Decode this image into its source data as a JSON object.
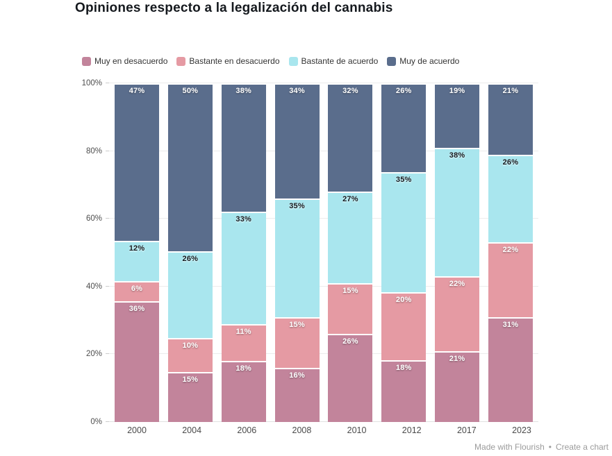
{
  "title": "Opiniones respecto a la legalización del cannabis",
  "footer": {
    "made_with": "Made with Flourish",
    "separator": "•",
    "create": "Create a chart"
  },
  "colors": {
    "background": "#ffffff",
    "title_text": "#15191e",
    "axis_text": "#4d4d4d",
    "gridline": "#ececec",
    "footer_text": "#9b9b9b"
  },
  "chart_data": {
    "type": "bar",
    "stacked": true,
    "title": "Opiniones respecto a la legalización del cannabis",
    "categories": [
      "2000",
      "2004",
      "2006",
      "2008",
      "2010",
      "2012",
      "2017",
      "2023"
    ],
    "series": [
      {
        "name": "Muy en desacuerdo",
        "color": "#c2849b",
        "label_color": "#ffffff",
        "values": [
          36,
          15,
          18,
          16,
          26,
          18,
          21,
          31
        ]
      },
      {
        "name": "Bastante en desacuerdo",
        "color": "#e59aa3",
        "label_color": "#ffffff",
        "values": [
          6,
          10,
          11,
          15,
          15,
          20,
          22,
          22
        ]
      },
      {
        "name": "Bastante de acuerdo",
        "color": "#a9e6ee",
        "label_color": "#15191e",
        "values": [
          12,
          26,
          33,
          35,
          27,
          35,
          38,
          26
        ]
      },
      {
        "name": "Muy de acuerdo",
        "color": "#5a6d8c",
        "label_color": "#ffffff",
        "values": [
          47,
          50,
          38,
          34,
          32,
          26,
          19,
          21
        ]
      }
    ],
    "xlabel": "",
    "ylabel": "",
    "ylim": [
      0,
      100
    ],
    "yticks": [
      "0%",
      "20%",
      "40%",
      "60%",
      "80%",
      "100%"
    ],
    "value_suffix": "%",
    "grid": true,
    "legend_position": "top"
  }
}
